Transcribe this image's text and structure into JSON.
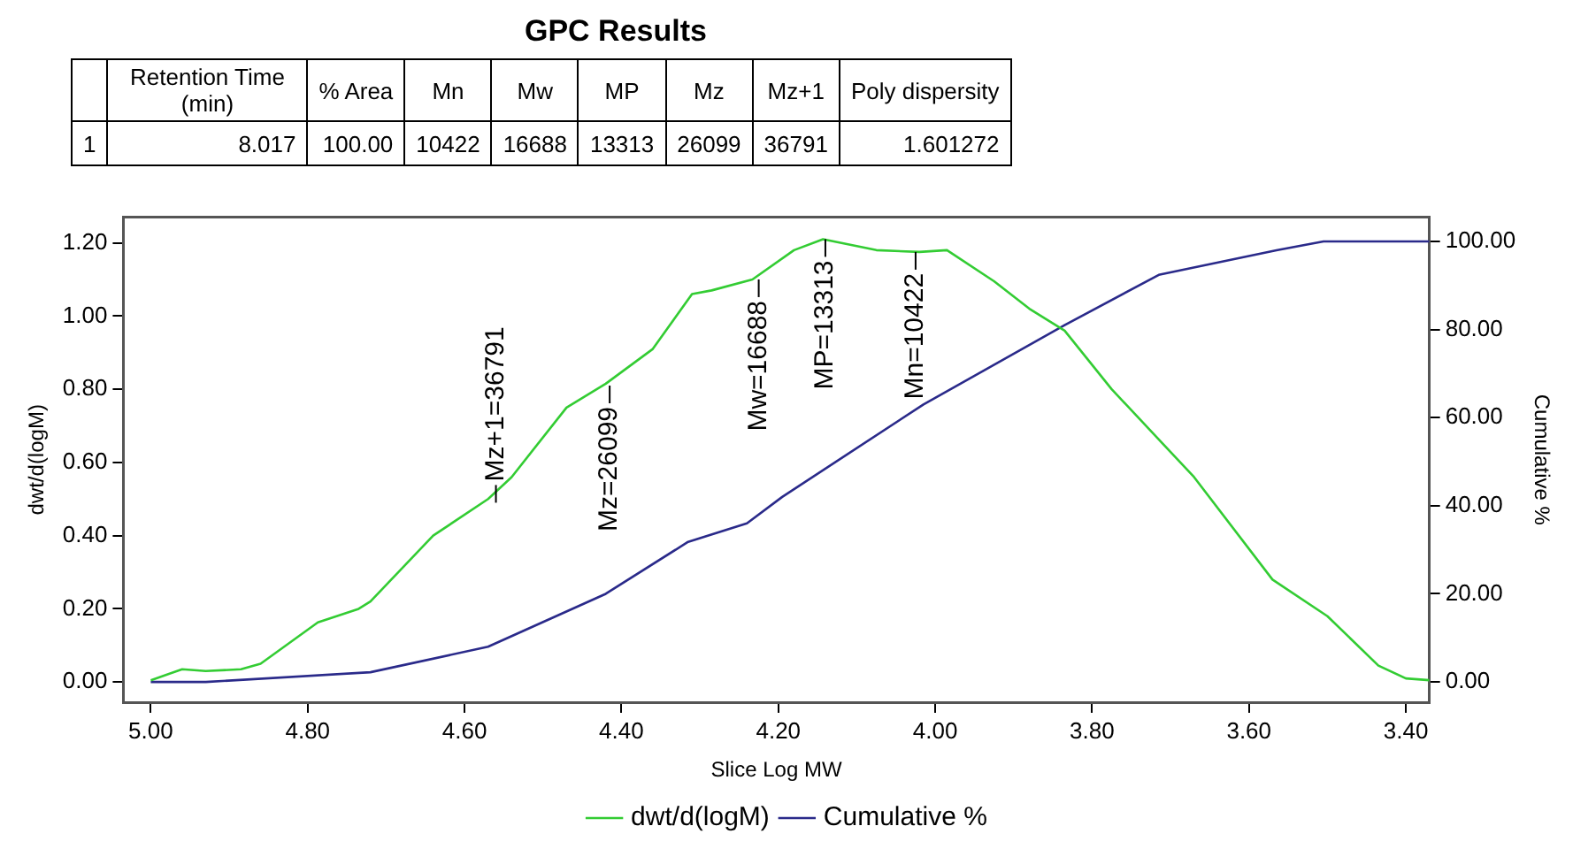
{
  "chart_data": {
    "type": "line",
    "title": "GPC Results",
    "xlabel": "Slice Log MW",
    "ylabel": "dwt/d(logM)",
    "y2label": "Cumulative %",
    "xlim": [
      5.035,
      3.37
    ],
    "xticks": [
      {
        "value": 5.0,
        "label": "5.00"
      },
      {
        "value": 4.8,
        "label": "4.80"
      },
      {
        "value": 4.6,
        "label": "4.60"
      },
      {
        "value": 4.4,
        "label": "4.40"
      },
      {
        "value": 4.2,
        "label": "4.20"
      },
      {
        "value": 4.0,
        "label": "4.00"
      },
      {
        "value": 3.8,
        "label": "3.80"
      },
      {
        "value": 3.6,
        "label": "3.60"
      },
      {
        "value": 3.4,
        "label": "3.40"
      }
    ],
    "ylim": [
      -0.055,
      1.27
    ],
    "yticks": [
      {
        "value": 0,
        "label": "0.00"
      },
      {
        "value": 0.2,
        "label": "0.20"
      },
      {
        "value": 0.4,
        "label": "0.40"
      },
      {
        "value": 0.6,
        "label": "0.60"
      },
      {
        "value": 0.8,
        "label": "0.80"
      },
      {
        "value": 1.0,
        "label": "1.00"
      },
      {
        "value": 1.2,
        "label": "1.20"
      }
    ],
    "y2lim": [
      -4.6,
      105.5
    ],
    "y2ticks": [
      {
        "value": 0,
        "label": "0.00"
      },
      {
        "value": 20,
        "label": "20.00"
      },
      {
        "value": 40,
        "label": "40.00"
      },
      {
        "value": 60,
        "label": "60.00"
      },
      {
        "value": 80,
        "label": "80.00"
      },
      {
        "value": 100,
        "label": "100.00"
      }
    ],
    "grid": false,
    "legend": "bottom",
    "marker": "none",
    "line_style": "solid",
    "series": [
      {
        "name": "dwt/d(logM)",
        "color": "#33cc33",
        "x": [
          5.0,
          4.96,
          4.93,
          4.885,
          4.86,
          4.787,
          4.735,
          4.72,
          4.64,
          4.57,
          4.54,
          4.47,
          4.42,
          4.36,
          4.31,
          4.285,
          4.233,
          4.18,
          4.143,
          4.075,
          4.02,
          3.985,
          3.925,
          3.88,
          3.835,
          3.775,
          3.67,
          3.57,
          3.5,
          3.435,
          3.4,
          3.37
        ],
        "values": [
          0.005,
          0.035,
          0.03,
          0.035,
          0.05,
          0.163,
          0.2,
          0.22,
          0.4,
          0.5,
          0.56,
          0.75,
          0.815,
          0.91,
          1.06,
          1.07,
          1.1,
          1.18,
          1.21,
          1.18,
          1.175,
          1.18,
          1.095,
          1.02,
          0.96,
          0.8,
          0.56,
          0.28,
          0.18,
          0.045,
          0.01,
          0.005
        ]
      },
      {
        "name": "Cumulative %",
        "color": "#2a2a8a",
        "axis": "y2",
        "x": [
          5.0,
          4.93,
          4.72,
          4.57,
          4.42,
          4.315,
          4.24,
          4.195,
          4.015,
          3.835,
          3.715,
          3.565,
          3.505,
          3.37
        ],
        "values": [
          0,
          0,
          2.2,
          8,
          20,
          31.8,
          36,
          42,
          63,
          81,
          92.4,
          98,
          100,
          100
        ]
      }
    ],
    "annotations": [
      "Retention Time (min)",
      "% Area",
      "Mn",
      "Mw",
      "MP",
      "Mz",
      "Mz+1",
      "Poly dispersity",
      "1",
      "8.017",
      "100.00",
      "10422",
      "16688",
      "13313",
      "26099",
      "36791",
      "1.601272",
      {
        "text": "Mz+1=36791",
        "x": 4.56,
        "y": 0.49
      },
      {
        "text": "Mz=26099",
        "x": 4.415,
        "y": 0.81
      },
      {
        "text": "Mw=16688",
        "x": 4.225,
        "y": 1.1
      },
      {
        "text": "MP=13313",
        "x": 4.14,
        "y": 1.21
      },
      {
        "text": "Mn=10422",
        "x": 4.025,
        "y": 1.175
      }
    ]
  }
}
